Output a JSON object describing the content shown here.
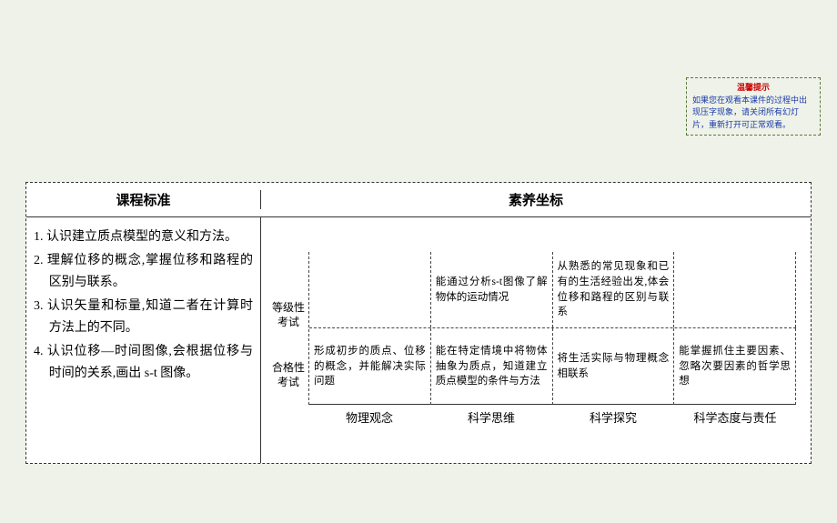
{
  "notice": {
    "title": "温馨提示",
    "body": "如果您在观看本课件的过程中出现压字现象，请关闭所有幻灯片，重新打开可正常观看。"
  },
  "headers": {
    "left": "课程标准",
    "right": "素养坐标"
  },
  "standards": [
    "1. 认识建立质点模型的意义和方法。",
    "2. 理解位移的概念,掌握位移和路程的区别与联系。",
    "3. 认识矢量和标量,知道二者在计算时方法上的不同。",
    "4. 认识位移—时间图像,会根据位移与时间的关系,画出 s-t 图像。"
  ],
  "rowLabels": [
    "等级性考试",
    "合格性考试"
  ],
  "colLabels": [
    "物理观念",
    "科学思维",
    "科学探究",
    "科学态度与责任"
  ],
  "grid": {
    "top": [
      "",
      "能通过分析s-t图像了解物体的运动情况",
      "从熟悉的常见现象和已有的生活经验出发,体会位移和路程的区别与联系",
      ""
    ],
    "bottom": [
      "形成初步的质点、位移的概念，并能解决实际问题",
      "能在特定情境中将物体抽象为质点，知道建立质点模型的条件与方法",
      "将生活实际与物理概念相联系",
      "能掌握抓住主要因素、忽略次要因素的哲学思想"
    ]
  }
}
